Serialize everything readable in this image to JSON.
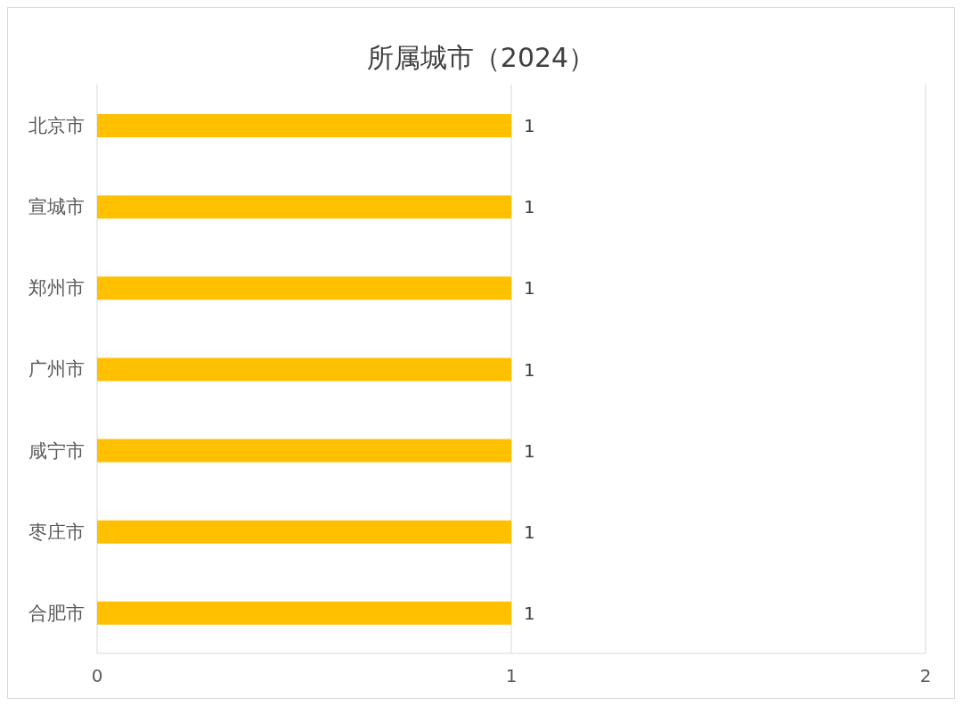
{
  "chart_data": {
    "type": "bar",
    "title": "所属城市（2024）",
    "orientation": "horizontal",
    "categories": [
      "北京市",
      "宣城市",
      "郑州市",
      "广州市",
      "咸宁市",
      "枣庄市",
      "合肥市"
    ],
    "values": [
      1,
      1,
      1,
      1,
      1,
      1,
      1
    ],
    "color": "#ffc000",
    "xlim": [
      0,
      2
    ],
    "xticks": [
      0,
      1,
      2
    ],
    "grid": "x",
    "data_labels": true
  }
}
